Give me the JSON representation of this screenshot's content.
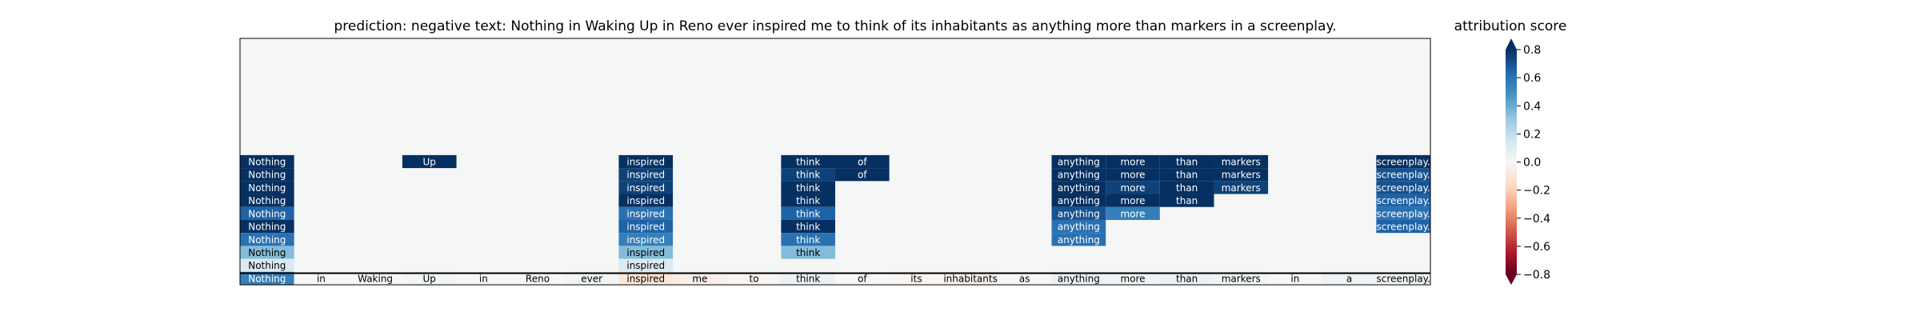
{
  "chart_data": {
    "type": "heatmap",
    "title": "prediction:  negative     text:  Nothing in Waking Up in Reno ever inspired me to think of its inhabitants as anything more than markers in a screenplay.",
    "tokens": [
      "Nothing",
      "in",
      "Waking",
      "Up",
      "in",
      "Reno",
      "ever",
      "inspired",
      "me",
      "to",
      "think",
      "of",
      "its",
      "inhabitants",
      "as",
      "anything",
      "more",
      "than",
      "markers",
      "in",
      "a",
      "screenplay."
    ],
    "base_row": {
      "description": "per-token attribution (bottom row)",
      "values": [
        0.55,
        0.0,
        0.0,
        0.02,
        0.0,
        0.0,
        0.02,
        -0.1,
        -0.05,
        -0.02,
        0.05,
        0.0,
        -0.02,
        -0.03,
        0.0,
        0.05,
        0.03,
        0.05,
        0.02,
        0.0,
        0.04,
        0.02
      ]
    },
    "evidence_rows": [
      [
        0.95,
        null,
        null,
        0.95,
        null,
        null,
        null,
        0.9,
        null,
        null,
        0.95,
        0.95,
        null,
        null,
        null,
        0.85,
        0.85,
        0.85,
        0.85,
        null,
        null,
        0.85
      ],
      [
        0.95,
        null,
        null,
        null,
        null,
        null,
        null,
        0.75,
        null,
        null,
        0.75,
        0.8,
        null,
        null,
        null,
        0.8,
        0.8,
        0.85,
        0.8,
        null,
        null,
        0.7
      ],
      [
        0.95,
        null,
        null,
        null,
        null,
        null,
        null,
        0.75,
        null,
        null,
        0.9,
        null,
        null,
        null,
        null,
        0.8,
        0.75,
        0.95,
        0.75,
        null,
        null,
        0.7
      ],
      [
        0.95,
        null,
        null,
        null,
        null,
        null,
        null,
        0.85,
        null,
        null,
        0.95,
        null,
        null,
        null,
        null,
        0.85,
        0.85,
        0.95,
        null,
        null,
        null,
        0.65
      ],
      [
        0.65,
        null,
        null,
        null,
        null,
        null,
        null,
        0.6,
        null,
        null,
        0.65,
        null,
        null,
        null,
        null,
        0.7,
        0.55,
        null,
        null,
        null,
        null,
        0.6
      ],
      [
        0.85,
        null,
        null,
        null,
        null,
        null,
        null,
        0.65,
        null,
        null,
        0.9,
        null,
        null,
        null,
        null,
        0.6,
        null,
        null,
        null,
        null,
        null,
        0.65
      ],
      [
        0.6,
        null,
        null,
        null,
        null,
        null,
        null,
        0.55,
        null,
        null,
        0.6,
        null,
        null,
        null,
        null,
        0.6,
        null,
        null,
        null,
        null,
        null,
        null
      ],
      [
        0.35,
        null,
        null,
        null,
        null,
        null,
        null,
        0.35,
        null,
        null,
        0.35,
        null,
        null,
        null,
        null,
        null,
        null,
        null,
        null,
        null,
        null,
        null
      ],
      [
        0.12,
        null,
        null,
        null,
        null,
        null,
        null,
        0.12,
        null,
        null,
        null,
        null,
        null,
        null,
        null,
        null,
        null,
        null,
        null,
        null,
        null,
        null
      ]
    ],
    "empty_rows_above": 9,
    "colorbar": {
      "label": "attribution score",
      "colormap": "RdBu",
      "vmin": -0.8,
      "vmax": 0.8,
      "ticks": [
        0.8,
        0.6,
        0.4,
        0.2,
        0.0,
        -0.2,
        -0.4,
        -0.6,
        -0.8
      ],
      "tick_labels": [
        "0.8",
        "0.6",
        "0.4",
        "0.2",
        "0.0",
        "−0.2",
        "−0.4",
        "−0.6",
        "−0.8"
      ]
    },
    "colors": {
      "plot_background": "#f5f6f6",
      "axis": "#000000",
      "text": "#000000",
      "cell_text": "#ffffff",
      "cell_text_light": "#000000"
    }
  }
}
